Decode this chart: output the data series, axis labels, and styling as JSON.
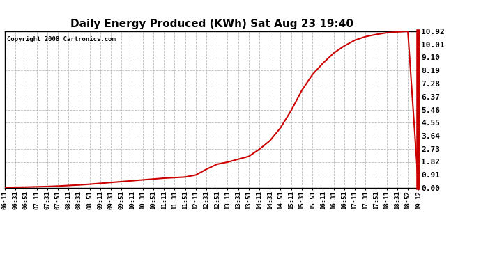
{
  "title": "Daily Energy Produced (KWh) Sat Aug 23 19:40",
  "copyright": "Copyright 2008 Cartronics.com",
  "line_color": "#cc0000",
  "background_color": "#ffffff",
  "grid_color": "#bbbbbb",
  "yticks": [
    0.0,
    0.91,
    1.82,
    2.73,
    3.64,
    4.55,
    5.46,
    6.37,
    7.28,
    8.19,
    9.1,
    10.01,
    10.92
  ],
  "ylim": [
    0.0,
    10.92
  ],
  "xtick_labels": [
    "06:11",
    "06:31",
    "06:51",
    "07:11",
    "07:31",
    "07:51",
    "08:11",
    "08:31",
    "08:51",
    "09:11",
    "09:31",
    "09:51",
    "10:11",
    "10:31",
    "10:51",
    "11:11",
    "11:31",
    "11:51",
    "12:11",
    "12:31",
    "12:51",
    "13:11",
    "13:31",
    "13:51",
    "14:11",
    "14:31",
    "14:51",
    "15:11",
    "15:31",
    "15:51",
    "16:11",
    "16:31",
    "16:51",
    "17:11",
    "17:31",
    "17:51",
    "18:11",
    "18:31",
    "18:52",
    "19:12"
  ],
  "data_x": [
    0,
    1,
    2,
    3,
    4,
    5,
    6,
    7,
    8,
    9,
    10,
    11,
    12,
    13,
    14,
    15,
    16,
    17,
    18,
    19,
    20,
    21,
    22,
    23,
    24,
    25,
    26,
    27,
    28,
    29,
    30,
    31,
    32,
    33,
    34,
    35,
    36,
    37,
    38,
    39
  ],
  "data_y": [
    0.04,
    0.05,
    0.06,
    0.08,
    0.1,
    0.13,
    0.17,
    0.21,
    0.26,
    0.32,
    0.38,
    0.44,
    0.5,
    0.56,
    0.62,
    0.68,
    0.72,
    0.76,
    0.9,
    1.3,
    1.65,
    1.8,
    2.0,
    2.2,
    2.7,
    3.3,
    4.2,
    5.4,
    6.8,
    7.9,
    8.7,
    9.4,
    9.9,
    10.3,
    10.55,
    10.7,
    10.82,
    10.88,
    10.92,
    0.0
  ]
}
